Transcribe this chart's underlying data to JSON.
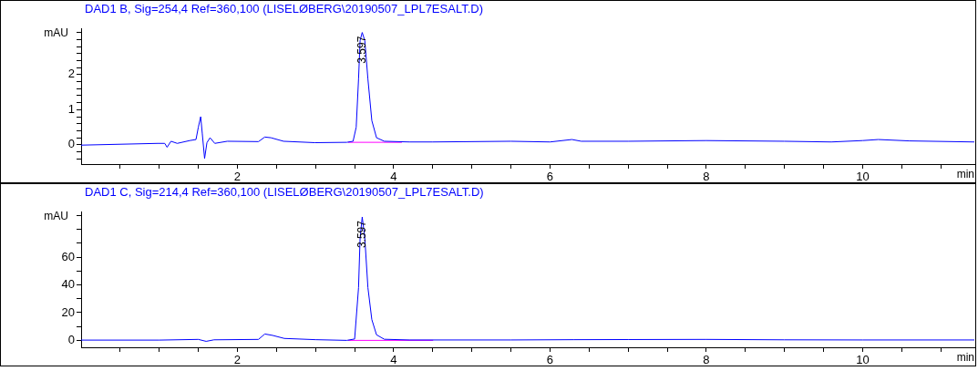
{
  "chart_data": [
    {
      "type": "line",
      "title": "DAD1 B, Sig=254,4 Ref=360,100 (LISELØBERG\\20190507_LPL7ESALT.D)",
      "xlabel": "min",
      "ylabel": "mAU",
      "xlim": [
        0,
        11.43
      ],
      "xticks": [
        {
          "value": 0.5,
          "label": null
        },
        {
          "value": 1,
          "label": null
        },
        {
          "value": 1.5,
          "label": null
        },
        2,
        {
          "value": 2.5,
          "label": null
        },
        {
          "value": 3,
          "label": null
        },
        {
          "value": 3.5,
          "label": null
        },
        4,
        {
          "value": 4.5,
          "label": null
        },
        {
          "value": 5,
          "label": null
        },
        {
          "value": 5.5,
          "label": null
        },
        6,
        {
          "value": 6.5,
          "label": null
        },
        {
          "value": 7,
          "label": null
        },
        {
          "value": 7.5,
          "label": null
        },
        8,
        {
          "value": 8.5,
          "label": null
        },
        {
          "value": 9,
          "label": null
        },
        {
          "value": 9.5,
          "label": null
        },
        10,
        {
          "value": 10.5,
          "label": null
        },
        {
          "value": 11,
          "label": null
        }
      ],
      "ylim": [
        -0.55,
        3.32
      ],
      "yticks": [
        {
          "value": -0.4,
          "label": null
        },
        {
          "value": -0.2,
          "label": null
        },
        0,
        {
          "value": 0.2,
          "label": null
        },
        {
          "value": 0.4,
          "label": null
        },
        {
          "value": 0.6,
          "label": null
        },
        {
          "value": 0.8,
          "label": null
        },
        1,
        {
          "value": 1.2,
          "label": null
        },
        {
          "value": 1.4,
          "label": null
        },
        {
          "value": 1.6,
          "label": null
        },
        {
          "value": 1.8,
          "label": null
        },
        2,
        {
          "value": 2.2,
          "label": null
        },
        {
          "value": 2.4,
          "label": null
        },
        {
          "value": 2.6,
          "label": null
        },
        {
          "value": 2.8,
          "label": null
        },
        {
          "value": 3,
          "label": null
        },
        {
          "value": 3.2,
          "label": null
        }
      ],
      "grid": false,
      "legend": false,
      "marker": "none",
      "line_style": "solid",
      "annotations": [
        {
          "text": "3.597",
          "x": 3.597,
          "y": 3.2
        }
      ],
      "series": [
        {
          "color": "#0000ff",
          "x": [
            0,
            0.98,
            1.07,
            1.1,
            1.15,
            1.23,
            1.39,
            1.47,
            1.5,
            1.53,
            1.55,
            1.58,
            1.61,
            1.65,
            1.71,
            1.87,
            2.27,
            2.35,
            2.43,
            2.59,
            2.99,
            3.4,
            3.48,
            3.52,
            3.55,
            3.57,
            3.597,
            3.63,
            3.67,
            3.72,
            3.78,
            3.88,
            4.2,
            4.5,
            5.5,
            6.0,
            6.28,
            6.4,
            7,
            8,
            9,
            9.6,
            10,
            10.2,
            10.6,
            11.43
          ],
          "values": [
            -0.01,
            0.04,
            0.04,
            -0.07,
            0.1,
            0.04,
            0.12,
            0.15,
            0.5,
            0.8,
            0.33,
            -0.39,
            0.06,
            0.2,
            0.04,
            0.1,
            0.09,
            0.22,
            0.2,
            0.1,
            0.06,
            0.07,
            0.1,
            0.5,
            1.87,
            2.97,
            3.2,
            2.97,
            1.87,
            0.69,
            0.2,
            0.1,
            0.08,
            0.08,
            0.1,
            0.08,
            0.15,
            0.1,
            0.1,
            0.12,
            0.1,
            0.08,
            0.12,
            0.15,
            0.11,
            0.08
          ]
        },
        {
          "color": "#ff00ff",
          "x": [
            3.42,
            4.1
          ],
          "values": [
            0.07,
            0.07
          ]
        }
      ]
    },
    {
      "type": "line",
      "title": "DAD1 C, Sig=214,4 Ref=360,100 (LISELØBERG\\20190507_LPL7ESALT.D)",
      "xlabel": "min",
      "ylabel": "mAU",
      "xlim": [
        0,
        11.43
      ],
      "xticks": [
        {
          "value": 0.5,
          "label": null
        },
        {
          "value": 1,
          "label": null
        },
        {
          "value": 1.5,
          "label": null
        },
        2,
        {
          "value": 2.5,
          "label": null
        },
        {
          "value": 3,
          "label": null
        },
        {
          "value": 3.5,
          "label": null
        },
        4,
        {
          "value": 4.5,
          "label": null
        },
        {
          "value": 5,
          "label": null
        },
        {
          "value": 5.5,
          "label": null
        },
        6,
        {
          "value": 6.5,
          "label": null
        },
        {
          "value": 7,
          "label": null
        },
        {
          "value": 7.5,
          "label": null
        },
        8,
        {
          "value": 8.5,
          "label": null
        },
        {
          "value": 9,
          "label": null
        },
        {
          "value": 9.5,
          "label": null
        },
        10,
        {
          "value": 10.5,
          "label": null
        },
        {
          "value": 11,
          "label": null
        }
      ],
      "ylim": [
        -5,
        93
      ],
      "yticks": [
        0,
        {
          "value": 10,
          "label": null
        },
        20,
        {
          "value": 30,
          "label": null
        },
        40,
        {
          "value": 50,
          "label": null
        },
        60,
        {
          "value": 70,
          "label": null
        },
        {
          "value": 80,
          "label": null
        },
        {
          "value": 90,
          "label": null
        }
      ],
      "grid": false,
      "legend": false,
      "marker": "none",
      "line_style": "solid",
      "annotations": [
        {
          "text": "3.597",
          "x": 3.597,
          "y": 89
        }
      ],
      "series": [
        {
          "color": "#0000ff",
          "x": [
            0,
            1.0,
            1.5,
            1.6,
            1.7,
            2.27,
            2.35,
            2.45,
            2.6,
            3.0,
            3.4,
            3.5,
            3.55,
            3.57,
            3.597,
            3.63,
            3.67,
            3.72,
            3.78,
            3.88,
            4.2,
            5.5,
            6.3,
            7.0,
            8.0,
            9.0,
            10.0,
            11.43
          ],
          "values": [
            0.2,
            0.2,
            0.7,
            -0.7,
            0.4,
            0.7,
            4.6,
            3.6,
            1.4,
            0.5,
            0,
            1,
            38,
            74,
            89,
            74,
            38,
            15,
            4,
            0.8,
            0.3,
            0.3,
            0.5,
            0.6,
            0.7,
            0.4,
            0.3,
            0.3
          ]
        },
        {
          "color": "#ff00ff",
          "x": [
            3.42,
            4.5
          ],
          "values": [
            0,
            0
          ]
        }
      ]
    }
  ]
}
